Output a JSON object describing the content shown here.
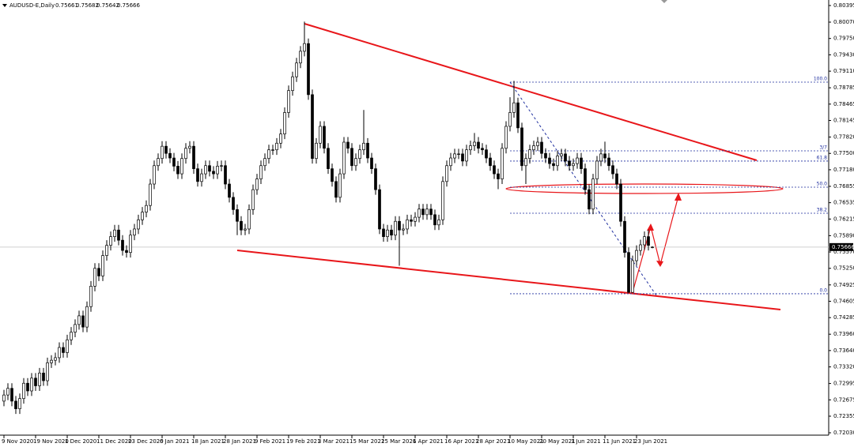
{
  "chart_data": {
    "type": "candlestick",
    "title": "AUDUSD-E,Daily",
    "up_color": "#ffffff",
    "down_color": "#000000",
    "outline_color": "#000000",
    "ohlc": [
      [
        0.7265,
        0.7287,
        0.7255,
        0.7277
      ],
      [
        0.7277,
        0.73,
        0.7267,
        0.729
      ],
      [
        0.729,
        0.73,
        0.7255,
        0.7265
      ],
      [
        0.7265,
        0.7275,
        0.724,
        0.725
      ],
      [
        0.725,
        0.728,
        0.724,
        0.727
      ],
      [
        0.727,
        0.731,
        0.726,
        0.73
      ],
      [
        0.73,
        0.731,
        0.7275,
        0.7285
      ],
      [
        0.7285,
        0.732,
        0.7275,
        0.731
      ],
      [
        0.731,
        0.732,
        0.7285,
        0.7295
      ],
      [
        0.7295,
        0.733,
        0.7285,
        0.732
      ],
      [
        0.732,
        0.733,
        0.7295,
        0.7305
      ],
      [
        0.7305,
        0.735,
        0.7295,
        0.734
      ],
      [
        0.734,
        0.7355,
        0.733,
        0.7345
      ],
      [
        0.7345,
        0.736,
        0.7335,
        0.735
      ],
      [
        0.735,
        0.738,
        0.734,
        0.737
      ],
      [
        0.737,
        0.738,
        0.735,
        0.736
      ],
      [
        0.736,
        0.7395,
        0.735,
        0.7385
      ],
      [
        0.7385,
        0.741,
        0.7375,
        0.74
      ],
      [
        0.74,
        0.7425,
        0.739,
        0.7415
      ],
      [
        0.7415,
        0.7442,
        0.7405,
        0.7432
      ],
      [
        0.7432,
        0.7442,
        0.74,
        0.741
      ],
      [
        0.741,
        0.746,
        0.74,
        0.745
      ],
      [
        0.745,
        0.75,
        0.744,
        0.749
      ],
      [
        0.749,
        0.7535,
        0.748,
        0.7525
      ],
      [
        0.7525,
        0.7535,
        0.75,
        0.751
      ],
      [
        0.751,
        0.756,
        0.75,
        0.755
      ],
      [
        0.755,
        0.758,
        0.754,
        0.757
      ],
      [
        0.757,
        0.7597,
        0.756,
        0.7587
      ],
      [
        0.7587,
        0.761,
        0.7577,
        0.76
      ],
      [
        0.76,
        0.761,
        0.757,
        0.758
      ],
      [
        0.758,
        0.759,
        0.755,
        0.756
      ],
      [
        0.756,
        0.757,
        0.7546,
        0.7556
      ],
      [
        0.7556,
        0.76,
        0.7546,
        0.759
      ],
      [
        0.759,
        0.7612,
        0.758,
        0.7602
      ],
      [
        0.7602,
        0.763,
        0.7592,
        0.762
      ],
      [
        0.762,
        0.7645,
        0.761,
        0.7635
      ],
      [
        0.7635,
        0.7658,
        0.7625,
        0.7648
      ],
      [
        0.7648,
        0.77,
        0.7638,
        0.769
      ],
      [
        0.769,
        0.7736,
        0.768,
        0.7726
      ],
      [
        0.7726,
        0.775,
        0.7716,
        0.774
      ],
      [
        0.774,
        0.7774,
        0.773,
        0.7764
      ],
      [
        0.7764,
        0.7774,
        0.774,
        0.775
      ],
      [
        0.775,
        0.776,
        0.7731,
        0.7741
      ],
      [
        0.7741,
        0.7751,
        0.7715,
        0.7725
      ],
      [
        0.7725,
        0.7735,
        0.77,
        0.771
      ],
      [
        0.771,
        0.775,
        0.77,
        0.774
      ],
      [
        0.774,
        0.777,
        0.773,
        0.776
      ],
      [
        0.776,
        0.7774,
        0.775,
        0.7764
      ],
      [
        0.7764,
        0.7774,
        0.771,
        0.772
      ],
      [
        0.772,
        0.773,
        0.7685,
        0.7695
      ],
      [
        0.7695,
        0.772,
        0.7685,
        0.771
      ],
      [
        0.771,
        0.7736,
        0.77,
        0.7726
      ],
      [
        0.7726,
        0.7736,
        0.7705,
        0.7715
      ],
      [
        0.7715,
        0.7725,
        0.77,
        0.771
      ],
      [
        0.771,
        0.7735,
        0.77,
        0.7725
      ],
      [
        0.7725,
        0.7736,
        0.7715,
        0.7726
      ],
      [
        0.7726,
        0.7736,
        0.768,
        0.769
      ],
      [
        0.769,
        0.77,
        0.7654,
        0.7664
      ],
      [
        0.7664,
        0.7674,
        0.763,
        0.764
      ],
      [
        0.764,
        0.765,
        0.759,
        0.7617
      ],
      [
        0.7617,
        0.7627,
        0.759,
        0.76
      ],
      [
        0.76,
        0.7612,
        0.759,
        0.7602
      ],
      [
        0.7602,
        0.765,
        0.7592,
        0.764
      ],
      [
        0.764,
        0.7689,
        0.763,
        0.7679
      ],
      [
        0.7679,
        0.771,
        0.7669,
        0.77
      ],
      [
        0.77,
        0.7736,
        0.769,
        0.7726
      ],
      [
        0.7726,
        0.775,
        0.7716,
        0.774
      ],
      [
        0.774,
        0.7767,
        0.773,
        0.7757
      ],
      [
        0.7757,
        0.7767,
        0.7747,
        0.7757
      ],
      [
        0.7757,
        0.778,
        0.7747,
        0.777
      ],
      [
        0.777,
        0.7798,
        0.776,
        0.7788
      ],
      [
        0.7788,
        0.784,
        0.7778,
        0.783
      ],
      [
        0.783,
        0.7883,
        0.782,
        0.7873
      ],
      [
        0.7873,
        0.791,
        0.7863,
        0.79
      ],
      [
        0.79,
        0.7937,
        0.789,
        0.7927
      ],
      [
        0.7927,
        0.796,
        0.7917,
        0.795
      ],
      [
        0.795,
        0.8008,
        0.794,
        0.7965
      ],
      [
        0.7965,
        0.7975,
        0.7855,
        0.7865
      ],
      [
        0.7865,
        0.7875,
        0.773,
        0.774
      ],
      [
        0.774,
        0.778,
        0.773,
        0.777
      ],
      [
        0.777,
        0.7813,
        0.776,
        0.7803
      ],
      [
        0.7803,
        0.7813,
        0.775,
        0.776
      ],
      [
        0.776,
        0.777,
        0.771,
        0.772
      ],
      [
        0.772,
        0.773,
        0.7685,
        0.7695
      ],
      [
        0.7695,
        0.7705,
        0.7654,
        0.7664
      ],
      [
        0.7664,
        0.772,
        0.7654,
        0.771
      ],
      [
        0.771,
        0.7782,
        0.77,
        0.7772
      ],
      [
        0.7772,
        0.7782,
        0.775,
        0.776
      ],
      [
        0.776,
        0.777,
        0.7716,
        0.7726
      ],
      [
        0.7726,
        0.775,
        0.7716,
        0.774
      ],
      [
        0.774,
        0.7767,
        0.773,
        0.7757
      ],
      [
        0.7757,
        0.7835,
        0.7747,
        0.777
      ],
      [
        0.777,
        0.778,
        0.7731,
        0.7741
      ],
      [
        0.7741,
        0.7751,
        0.771,
        0.772
      ],
      [
        0.772,
        0.773,
        0.7669,
        0.7679
      ],
      [
        0.7679,
        0.7689,
        0.7592,
        0.7602
      ],
      [
        0.7602,
        0.7612,
        0.7577,
        0.7587
      ],
      [
        0.7587,
        0.761,
        0.7577,
        0.76
      ],
      [
        0.76,
        0.761,
        0.758,
        0.759
      ],
      [
        0.759,
        0.7627,
        0.758,
        0.7617
      ],
      [
        0.7617,
        0.7627,
        0.753,
        0.76
      ],
      [
        0.76,
        0.7612,
        0.759,
        0.7602
      ],
      [
        0.7602,
        0.763,
        0.7592,
        0.762
      ],
      [
        0.762,
        0.763,
        0.7607,
        0.7617
      ],
      [
        0.7617,
        0.7635,
        0.7607,
        0.7625
      ],
      [
        0.7625,
        0.7651,
        0.7615,
        0.7641
      ],
      [
        0.7641,
        0.7651,
        0.762,
        0.763
      ],
      [
        0.763,
        0.7651,
        0.762,
        0.7641
      ],
      [
        0.7641,
        0.7651,
        0.762,
        0.763
      ],
      [
        0.763,
        0.764,
        0.76,
        0.761
      ],
      [
        0.761,
        0.763,
        0.76,
        0.762
      ],
      [
        0.762,
        0.7705,
        0.761,
        0.7695
      ],
      [
        0.7695,
        0.7736,
        0.7685,
        0.7726
      ],
      [
        0.7726,
        0.7751,
        0.7716,
        0.7741
      ],
      [
        0.7741,
        0.7759,
        0.7731,
        0.7749
      ],
      [
        0.7749,
        0.7759,
        0.7739,
        0.7749
      ],
      [
        0.7749,
        0.7759,
        0.7725,
        0.7735
      ],
      [
        0.7735,
        0.7767,
        0.7725,
        0.7757
      ],
      [
        0.7757,
        0.7775,
        0.7747,
        0.7765
      ],
      [
        0.7765,
        0.779,
        0.7755,
        0.7772
      ],
      [
        0.7772,
        0.7782,
        0.775,
        0.776
      ],
      [
        0.776,
        0.777,
        0.7747,
        0.7757
      ],
      [
        0.7757,
        0.7767,
        0.7731,
        0.7741
      ],
      [
        0.7741,
        0.7751,
        0.7716,
        0.7726
      ],
      [
        0.7726,
        0.7736,
        0.77,
        0.771
      ],
      [
        0.771,
        0.772,
        0.768,
        0.77
      ],
      [
        0.77,
        0.777,
        0.769,
        0.776
      ],
      [
        0.776,
        0.7813,
        0.775,
        0.7803
      ],
      [
        0.7803,
        0.786,
        0.7793,
        0.783
      ],
      [
        0.783,
        0.7892,
        0.782,
        0.7849
      ],
      [
        0.7849,
        0.7859,
        0.779,
        0.78
      ],
      [
        0.78,
        0.781,
        0.7716,
        0.7726
      ],
      [
        0.7726,
        0.775,
        0.769,
        0.774
      ],
      [
        0.774,
        0.7767,
        0.773,
        0.7757
      ],
      [
        0.7757,
        0.7775,
        0.7747,
        0.7765
      ],
      [
        0.7765,
        0.7782,
        0.7755,
        0.7772
      ],
      [
        0.7772,
        0.7782,
        0.774,
        0.775
      ],
      [
        0.775,
        0.776,
        0.7731,
        0.7741
      ],
      [
        0.7741,
        0.7751,
        0.772,
        0.773
      ],
      [
        0.773,
        0.774,
        0.7716,
        0.7726
      ],
      [
        0.7726,
        0.7755,
        0.7716,
        0.7745
      ],
      [
        0.7745,
        0.7759,
        0.7735,
        0.7749
      ],
      [
        0.7749,
        0.7759,
        0.7725,
        0.7735
      ],
      [
        0.7735,
        0.7745,
        0.7716,
        0.7726
      ],
      [
        0.7726,
        0.774,
        0.7716,
        0.773
      ],
      [
        0.773,
        0.7751,
        0.772,
        0.7741
      ],
      [
        0.7741,
        0.7751,
        0.771,
        0.772
      ],
      [
        0.772,
        0.773,
        0.7669,
        0.7679
      ],
      [
        0.7679,
        0.7689,
        0.7631,
        0.7641
      ],
      [
        0.7641,
        0.771,
        0.7631,
        0.77
      ],
      [
        0.77,
        0.7745,
        0.769,
        0.7735
      ],
      [
        0.7735,
        0.7759,
        0.7725,
        0.7749
      ],
      [
        0.7749,
        0.7773,
        0.7731,
        0.7741
      ],
      [
        0.7741,
        0.7751,
        0.7716,
        0.7726
      ],
      [
        0.7726,
        0.7736,
        0.77,
        0.771
      ],
      [
        0.771,
        0.772,
        0.768,
        0.769
      ],
      [
        0.769,
        0.77,
        0.7607,
        0.7617
      ],
      [
        0.7617,
        0.7627,
        0.7546,
        0.7556
      ],
      [
        0.7556,
        0.7566,
        0.7477,
        0.7478
      ],
      [
        0.7478,
        0.755,
        0.7477,
        0.754
      ],
      [
        0.754,
        0.757,
        0.753,
        0.756
      ],
      [
        0.756,
        0.7581,
        0.755,
        0.7571
      ],
      [
        0.7571,
        0.7597,
        0.7561,
        0.7587
      ],
      [
        0.7587,
        0.76,
        0.756,
        0.757
      ],
      [
        0.75661,
        0.75682,
        0.75642,
        0.75666
      ]
    ],
    "xlim": [
      -1,
      208.6
    ],
    "xticks": [
      {
        "value": 0,
        "label": "9 Nov 2020"
      },
      {
        "value": 8,
        "label": "19 Nov 2020"
      },
      {
        "value": 16,
        "label": "1 Dec 2020"
      },
      {
        "value": 24,
        "label": "11 Dec 2020"
      },
      {
        "value": 32,
        "label": "23 Dec 2020"
      },
      {
        "value": 40,
        "label": "6 Jan 2021"
      },
      {
        "value": 48,
        "label": "18 Jan 2021"
      },
      {
        "value": 56,
        "label": "28 Jan 2021"
      },
      {
        "value": 64,
        "label": "9 Feb 2021"
      },
      {
        "value": 72,
        "label": "19 Feb 2021"
      },
      {
        "value": 80,
        "label": "3 Mar 2021"
      },
      {
        "value": 88,
        "label": "15 Mar 2021"
      },
      {
        "value": 96,
        "label": "25 Mar 2021"
      },
      {
        "value": 104,
        "label": "6 Apr 2021"
      },
      {
        "value": 112,
        "label": "16 Apr 2021"
      },
      {
        "value": 120,
        "label": "28 Apr 2021"
      },
      {
        "value": 128,
        "label": "10 May 2021"
      },
      {
        "value": 136,
        "label": "20 May 2021"
      },
      {
        "value": 144,
        "label": "1 Jun 2021"
      },
      {
        "value": 152,
        "label": "11 Jun 2021"
      },
      {
        "value": 160,
        "label": "23 Jun 2021"
      }
    ],
    "ylim": [
      0.7203,
      0.80395
    ],
    "yticks": [
      0.80395,
      {
        "value": 0.8007,
        "label": "0.80070"
      },
      {
        "value": 0.7975,
        "label": "0.79750"
      },
      {
        "value": 0.7943,
        "label": "0.79430"
      },
      {
        "value": 0.7911,
        "label": "0.79110"
      },
      0.78785,
      0.78465,
      0.78145,
      {
        "value": 0.7782,
        "label": "0.77820"
      },
      {
        "value": 0.775,
        "label": "0.77500"
      },
      {
        "value": 0.7718,
        "label": "0.77180"
      },
      0.76855,
      0.76535,
      0.76215,
      {
        "value": 0.7589,
        "label": "0.75890"
      },
      {
        "value": 0.7557,
        "label": "0.75570"
      },
      {
        "value": 0.7525,
        "label": "0.75250"
      },
      0.74925,
      0.74605,
      0.74285,
      {
        "value": 0.7396,
        "label": "0.73960"
      },
      {
        "value": 0.7364,
        "label": "0.73640"
      },
      {
        "value": 0.7332,
        "label": "0.73320"
      },
      0.72995,
      0.72675,
      0.72355,
      {
        "value": 0.7203,
        "label": "0.72030"
      }
    ],
    "fibonacci": {
      "color": "#1f2f9f",
      "start": 128,
      "levels": [
        {
          "label": "100.0",
          "price": 0.78895
        },
        {
          "label": "3/7",
          "price": 0.7755
        },
        {
          "label": "61.8",
          "price": 0.7735
        },
        {
          "label": "50.0",
          "price": 0.76839
        },
        {
          "label": "38.2",
          "price": 0.76329
        },
        {
          "label": "0.0",
          "price": 0.74752
        }
      ]
    }
  }
}
